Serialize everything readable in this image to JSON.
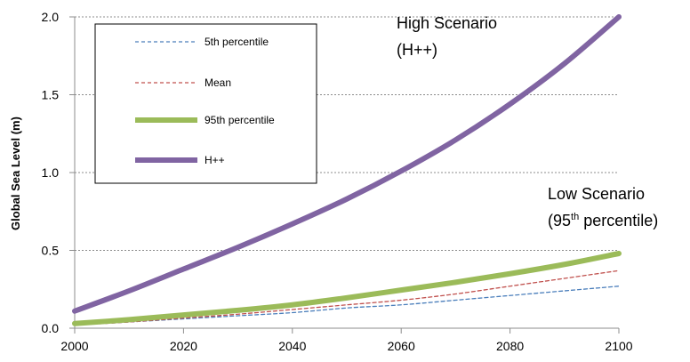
{
  "chart_data": {
    "type": "line",
    "title": "",
    "xlabel": "",
    "ylabel": "Global Sea Level (m)",
    "xlim": [
      2000,
      2100
    ],
    "ylim": [
      0,
      2.0
    ],
    "x_ticks": [
      "2000",
      "2020",
      "2040",
      "2060",
      "2080",
      "2100"
    ],
    "y_ticks": [
      "0.0",
      "0.5",
      "1.0",
      "1.5",
      "2.0"
    ],
    "grid": "horizontal dashed",
    "legend_position": "top-left",
    "x": [
      2000,
      2010,
      2020,
      2030,
      2040,
      2050,
      2060,
      2070,
      2080,
      2090,
      2100
    ],
    "series": [
      {
        "name": "5th percentile",
        "color": "#4a7ebb",
        "style": "dashed",
        "values": [
          0.02,
          0.04,
          0.06,
          0.08,
          0.1,
          0.13,
          0.15,
          0.18,
          0.21,
          0.24,
          0.27
        ]
      },
      {
        "name": "Mean",
        "color": "#c0504d",
        "style": "dashed",
        "values": [
          0.02,
          0.04,
          0.065,
          0.09,
          0.12,
          0.15,
          0.18,
          0.22,
          0.27,
          0.32,
          0.37
        ]
      },
      {
        "name": "95th percentile",
        "color": "#9bbb59",
        "style": "thick",
        "values": [
          0.03,
          0.055,
          0.085,
          0.115,
          0.15,
          0.195,
          0.245,
          0.295,
          0.35,
          0.41,
          0.48
        ]
      },
      {
        "name": "H++",
        "color": "#8064a2",
        "style": "thick",
        "values": [
          0.11,
          0.24,
          0.38,
          0.52,
          0.67,
          0.83,
          1.01,
          1.21,
          1.44,
          1.7,
          2.0
        ]
      }
    ],
    "annotations": {
      "high_line1": "High Scenario",
      "high_line2": "(H++)",
      "low_line1": "Low Scenario",
      "low_line2_prefix": "(95",
      "low_line2_sup": "th",
      "low_line2_suffix": " percentile)"
    }
  }
}
